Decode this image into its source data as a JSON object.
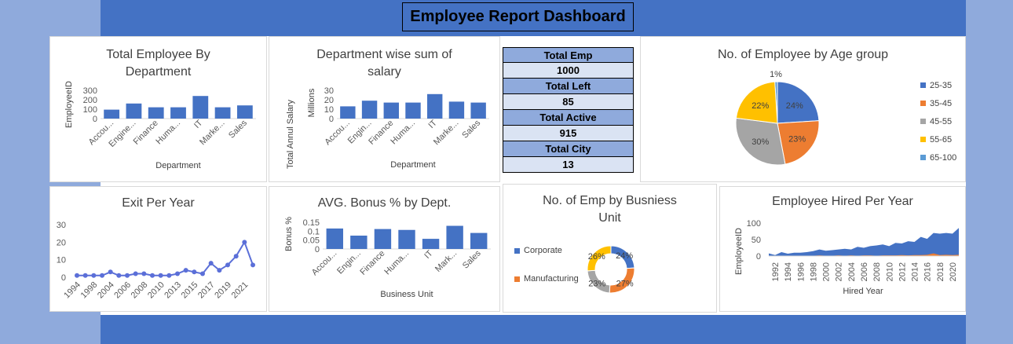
{
  "dashboard": {
    "title": "Employee Report Dashboard"
  },
  "kpi": [
    {
      "label": "Total Emp",
      "value": "1000"
    },
    {
      "label": "Total Left",
      "value": "85"
    },
    {
      "label": "Total Active",
      "value": "915"
    },
    {
      "label": "Total City",
      "value": "13"
    }
  ],
  "colors": {
    "blue": "#4472c4",
    "orange": "#ed7d31",
    "gray": "#a5a5a5",
    "yellow": "#ffc000",
    "lightblue": "#5b9bd5",
    "line": "#5b6fd8"
  },
  "chart_data": [
    {
      "id": "emp_by_dept",
      "type": "bar",
      "title": "Total Employee By Department",
      "title_lines": [
        "Total Employee By",
        "Department"
      ],
      "categories": [
        "Accou...",
        "Engine...",
        "Finance",
        "Huma...",
        "IT",
        "Marke...",
        "Sales"
      ],
      "values": [
        95,
        160,
        120,
        120,
        240,
        120,
        140
      ],
      "xlabel": "Department",
      "ylabel": "EmployeeID",
      "yticks": [
        "0",
        "100",
        "200",
        "300"
      ],
      "ylim": [
        0,
        300
      ]
    },
    {
      "id": "salary_by_dept",
      "type": "bar",
      "title": "Department wise sum of salary",
      "title_lines": [
        "Department wise sum of",
        "salary"
      ],
      "categories": [
        "Accou...",
        "Engin...",
        "Finance",
        "Huma...",
        "IT",
        "Marke...",
        "Sales"
      ],
      "values": [
        13,
        19,
        17,
        17,
        26,
        18,
        17
      ],
      "xlabel": "Department",
      "ylabel": "Total Annul Salary",
      "yunit": "Millions",
      "yticks": [
        "0",
        "10",
        "20",
        "30"
      ],
      "ylim": [
        0,
        30
      ]
    },
    {
      "id": "age_group",
      "type": "pie",
      "title": "No. of Employee by Age group",
      "labels": [
        "25-35",
        "35-45",
        "45-55",
        "55-65",
        "65-100"
      ],
      "values": [
        24,
        23,
        30,
        22,
        1
      ],
      "value_labels": [
        "24%",
        "23%",
        "30%",
        "22%",
        "1%"
      ],
      "legend": "right"
    },
    {
      "id": "exit_per_year",
      "type": "line",
      "title": "Exit Per Year",
      "x": [
        "1994",
        "1996",
        "1998",
        "2002",
        "2004",
        "2005",
        "2006",
        "2007",
        "2008",
        "2009",
        "2010",
        "2011",
        "2013",
        "2014",
        "2015",
        "2016",
        "2017",
        "2018",
        "2019",
        "2020",
        "2021",
        "2022"
      ],
      "values": [
        1,
        1,
        1,
        1,
        3,
        1,
        1,
        2,
        2,
        1,
        1,
        1,
        2,
        4,
        3,
        2,
        8,
        4,
        7,
        12,
        20,
        7
      ],
      "xticks": [
        "1994",
        "1998",
        "2004",
        "2006",
        "2008",
        "2010",
        "2013",
        "2015",
        "2017",
        "2019",
        "2021"
      ],
      "yticks": [
        "0",
        "10",
        "20",
        "30"
      ],
      "ylim": [
        0,
        30
      ]
    },
    {
      "id": "bonus_by_dept",
      "type": "bar",
      "title": "AVG. Bonus % by Dept.",
      "categories": [
        "Accou...",
        "Engin...",
        "Finance",
        "Huma...",
        "IT",
        "Mark...",
        "Sales"
      ],
      "values": [
        0.115,
        0.075,
        0.112,
        0.107,
        0.057,
        0.13,
        0.09
      ],
      "xlabel": "Business Unit",
      "ylabel": "Bonus %",
      "yticks": [
        "0",
        "0.05",
        "0.1",
        "0.15"
      ],
      "ylim": [
        0,
        0.15
      ]
    },
    {
      "id": "emp_by_unit",
      "type": "pie",
      "title": "No. of Emp by Busniess Unit",
      "title_lines": [
        "No. of Emp by Busniess",
        "Unit"
      ],
      "legend_entries": [
        "Corporate",
        "Manufacturing"
      ],
      "values": [
        24,
        27,
        23,
        26
      ],
      "value_labels": [
        "24%",
        "27%",
        "23%",
        "26%"
      ],
      "legend": "left"
    },
    {
      "id": "hired_per_year",
      "type": "area",
      "title": "Employee Hired Per Year",
      "x": [
        "1991",
        "1992",
        "1993",
        "1994",
        "1995",
        "1996",
        "1997",
        "1998",
        "1999",
        "2000",
        "2001",
        "2002",
        "2003",
        "2004",
        "2005",
        "2006",
        "2007",
        "2008",
        "2009",
        "2010",
        "2011",
        "2012",
        "2013",
        "2014",
        "2015",
        "2016",
        "2017",
        "2018",
        "2019",
        "2020",
        "2021"
      ],
      "series": [
        {
          "values": [
            8,
            3,
            12,
            7,
            10,
            10,
            12,
            15,
            20,
            16,
            18,
            20,
            22,
            20,
            28,
            25,
            30,
            32,
            35,
            30,
            40,
            38,
            45,
            43,
            58,
            52,
            70,
            68,
            70,
            68,
            85
          ]
        },
        {
          "values": [
            1,
            1,
            1,
            1,
            1,
            1,
            1,
            1,
            2,
            1,
            1,
            2,
            1,
            2,
            1,
            2,
            2,
            1,
            2,
            2,
            2,
            3,
            2,
            3,
            3,
            4,
            8,
            3,
            4,
            3,
            4
          ]
        }
      ],
      "xticks": [
        "1992",
        "1994",
        "1996",
        "1998",
        "2000",
        "2002",
        "2004",
        "2006",
        "2008",
        "2010",
        "2012",
        "2014",
        "2016",
        "2018",
        "2020"
      ],
      "xlabel": "Hired Year",
      "ylabel": "EmployeeID",
      "yticks": [
        "0",
        "50",
        "100"
      ],
      "ylim": [
        0,
        100
      ]
    }
  ]
}
